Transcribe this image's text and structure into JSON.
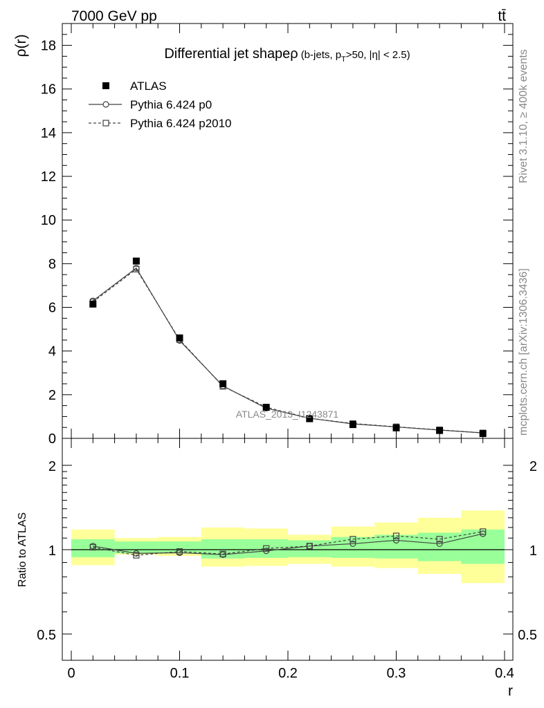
{
  "header": {
    "energy_label": "7000 GeV pp",
    "process_label": "tt̄"
  },
  "side_labels": {
    "rivet": "Rivet 3.1.10, ≥ 400k events",
    "mcplots": "mcplots.cern.ch [arXiv:1306.3436]"
  },
  "watermark": "ATLAS_2013_I1243871",
  "chart_data": [
    {
      "type": "scatter",
      "panel": "main",
      "title_main": "Differential jet shapeρ",
      "title_sub_pre": "(b-jets, p",
      "title_sub_sub": "T",
      "title_sub_post": ">50, |η| < 2.5)",
      "ylabel": "ρ(r)",
      "xlim": [
        0,
        0.4
      ],
      "ylim": [
        0,
        19
      ],
      "y_ticks": [
        0,
        2,
        4,
        6,
        8,
        10,
        12,
        14,
        16,
        18
      ],
      "y_tick_labels": [
        "0",
        "2",
        "4",
        "6",
        "8",
        "10",
        "12",
        "14",
        "16",
        "18"
      ],
      "legend_position": "top-left",
      "x": [
        0.02,
        0.06,
        0.1,
        0.14,
        0.18,
        0.22,
        0.26,
        0.3,
        0.34,
        0.38
      ],
      "series": [
        {
          "name": "ATLAS",
          "style": "data",
          "color": "#000000",
          "values": [
            6.15,
            8.12,
            4.6,
            2.5,
            1.42,
            0.9,
            0.63,
            0.48,
            0.36,
            0.22
          ]
        },
        {
          "name": "Pythia 6.424 p0",
          "style": "solid-circle",
          "color": "#404040",
          "values": [
            6.3,
            7.8,
            4.48,
            2.4,
            1.38,
            0.92,
            0.66,
            0.52,
            0.38,
            0.25
          ]
        },
        {
          "name": "Pythia 6.424 p2010",
          "style": "dashed-square",
          "color": "#404040",
          "values": [
            6.25,
            7.75,
            4.52,
            2.38,
            1.43,
            0.92,
            0.68,
            0.53,
            0.39,
            0.25
          ]
        }
      ]
    },
    {
      "type": "scatter",
      "panel": "ratio",
      "ylabel": "Ratio to ATLAS",
      "xlabel": "r",
      "xlim": [
        0,
        0.4
      ],
      "ylim": [
        0.4,
        2.3
      ],
      "x_ticks": [
        0,
        0.1,
        0.2,
        0.3,
        0.4
      ],
      "x_tick_labels": [
        "0",
        "0.1",
        "0.2",
        "0.3",
        "0.4"
      ],
      "y_ticks": [
        0.5,
        1,
        2
      ],
      "y_tick_labels": [
        "0.5",
        "1",
        "2"
      ],
      "bins": [
        [
          0,
          0.04
        ],
        [
          0.04,
          0.08
        ],
        [
          0.08,
          0.12
        ],
        [
          0.12,
          0.16
        ],
        [
          0.16,
          0.2
        ],
        [
          0.2,
          0.24
        ],
        [
          0.24,
          0.28
        ],
        [
          0.28,
          0.32
        ],
        [
          0.32,
          0.36
        ],
        [
          0.36,
          0.4
        ]
      ],
      "x": [
        0.02,
        0.06,
        0.1,
        0.14,
        0.18,
        0.22,
        0.26,
        0.3,
        0.34,
        0.38
      ],
      "band_inner": {
        "color": "#99ff99",
        "lo": [
          0.94,
          0.97,
          0.97,
          0.93,
          0.935,
          0.94,
          0.935,
          0.93,
          0.91,
          0.89
        ],
        "hi": [
          1.09,
          1.07,
          1.07,
          1.09,
          1.09,
          1.08,
          1.11,
          1.13,
          1.15,
          1.18
        ]
      },
      "band_outer": {
        "color": "#ffff99",
        "lo": [
          0.88,
          0.96,
          0.95,
          0.87,
          0.875,
          0.89,
          0.87,
          0.86,
          0.82,
          0.76
        ],
        "hi": [
          1.18,
          1.1,
          1.11,
          1.2,
          1.19,
          1.13,
          1.21,
          1.25,
          1.3,
          1.38
        ]
      },
      "series": [
        {
          "name": "Pythia 6.424 p0",
          "style": "solid-circle",
          "color": "#404040",
          "values": [
            1.03,
            0.97,
            0.975,
            0.96,
            0.99,
            1.03,
            1.05,
            1.08,
            1.05,
            1.14
          ]
        },
        {
          "name": "Pythia 6.424 p2010",
          "style": "dashed-square",
          "color": "#404040",
          "values": [
            1.02,
            0.955,
            0.985,
            0.965,
            1.01,
            1.03,
            1.09,
            1.12,
            1.09,
            1.16
          ]
        }
      ]
    }
  ]
}
